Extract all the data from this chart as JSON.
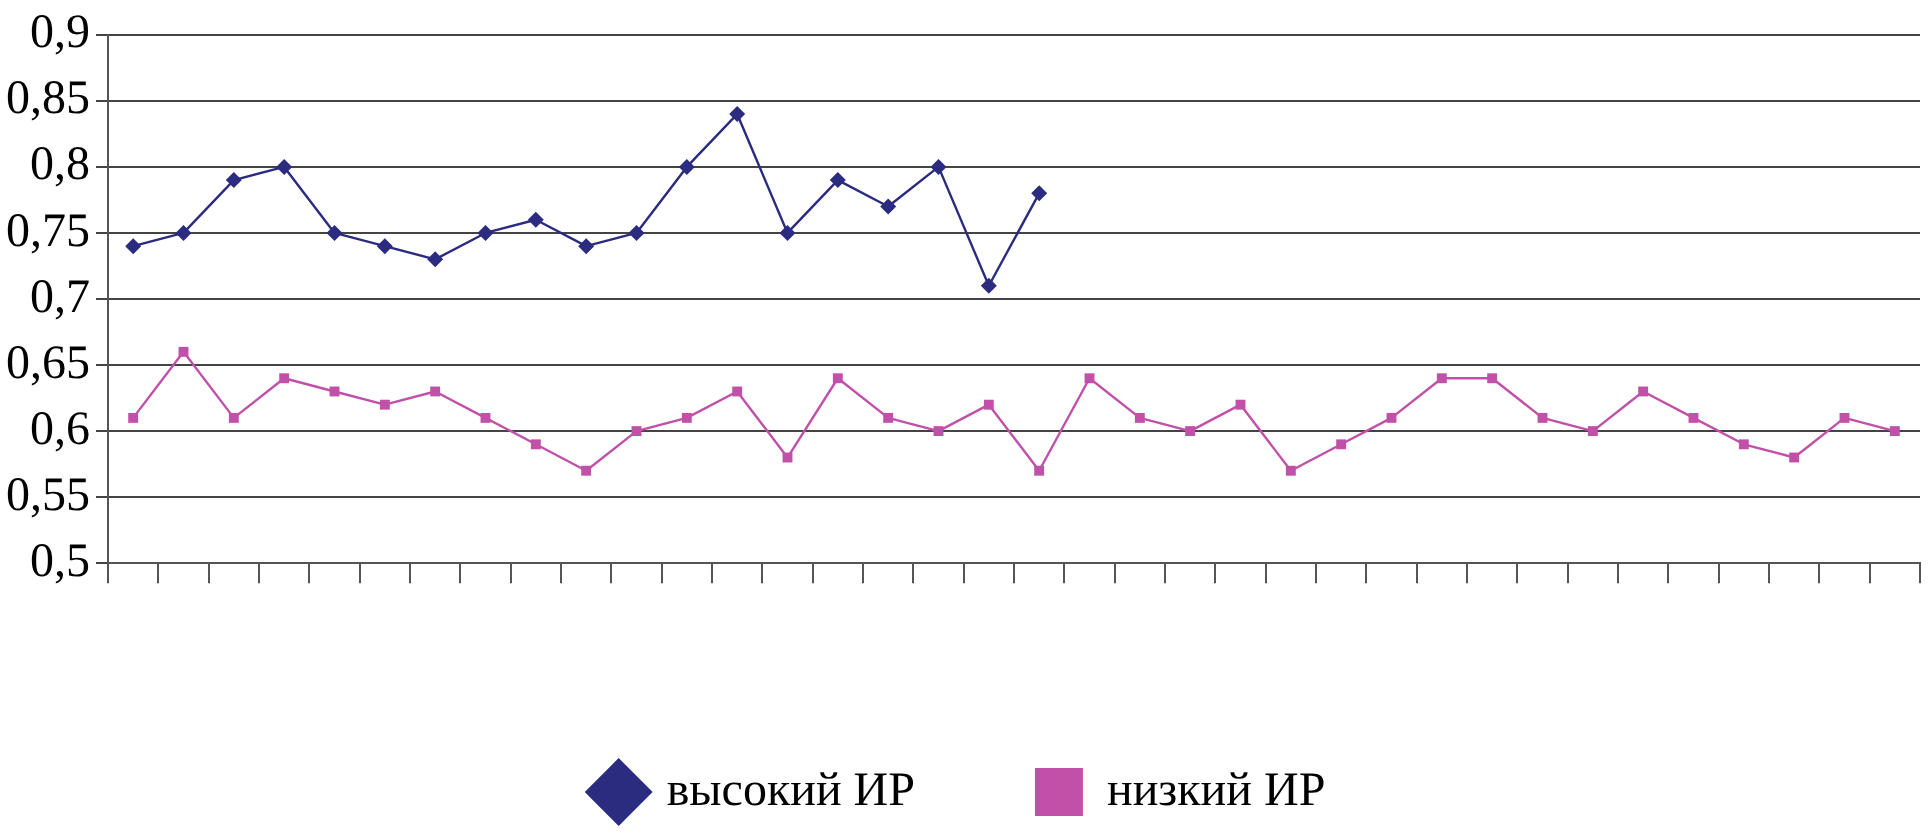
{
  "chart_data": {
    "type": "line",
    "categories": [
      null,
      null,
      null,
      null,
      null,
      null,
      null,
      null,
      null,
      null,
      null,
      null,
      null,
      null,
      null,
      null,
      null,
      null,
      null,
      null,
      null,
      null,
      null,
      null,
      null,
      null,
      null,
      null,
      null,
      null,
      null,
      null,
      null,
      null,
      null,
      null
    ],
    "series": [
      {
        "name": "высокий ИР",
        "color": "#2b2b80",
        "marker": "diamond",
        "values": [
          0.74,
          0.75,
          0.79,
          0.8,
          0.75,
          0.74,
          0.73,
          0.75,
          0.76,
          0.74,
          0.75,
          0.8,
          0.84,
          0.75,
          0.79,
          0.77,
          0.8,
          0.71,
          0.78,
          null,
          null,
          null,
          null,
          null,
          null,
          null,
          null,
          null,
          null,
          null,
          null,
          null,
          null,
          null,
          null,
          null
        ]
      },
      {
        "name": "низкий ИР",
        "color": "#c050a8",
        "marker": "square",
        "values": [
          0.61,
          0.66,
          0.61,
          0.64,
          0.63,
          0.62,
          0.63,
          0.61,
          0.59,
          0.57,
          0.6,
          0.61,
          0.63,
          0.58,
          0.64,
          0.61,
          0.6,
          0.62,
          0.57,
          0.64,
          0.61,
          0.6,
          0.62,
          0.57,
          0.59,
          0.61,
          0.64,
          0.64,
          0.61,
          0.6,
          0.63,
          0.61,
          0.59,
          0.58,
          0.61,
          0.6
        ]
      }
    ],
    "ylim": [
      0.5,
      0.9
    ],
    "yticks": [
      {
        "value": 0.5,
        "label": "0,5"
      },
      {
        "value": 0.55,
        "label": "0,55"
      },
      {
        "value": 0.6,
        "label": "0,6"
      },
      {
        "value": 0.65,
        "label": "0,65"
      },
      {
        "value": 0.7,
        "label": "0,7"
      },
      {
        "value": 0.75,
        "label": "0,75"
      },
      {
        "value": 0.8,
        "label": "0,8"
      },
      {
        "value": 0.85,
        "label": "0,85"
      },
      {
        "value": 0.9,
        "label": "0,9"
      }
    ],
    "grid": "y",
    "legend": "bottom",
    "line_style": "solid"
  }
}
